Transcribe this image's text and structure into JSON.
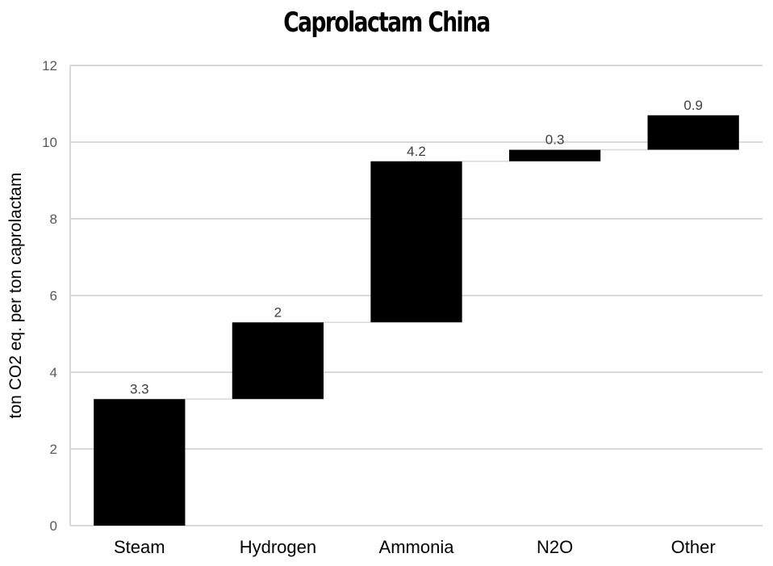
{
  "chart_data": {
    "type": "bar",
    "subtype": "waterfall",
    "title": "Caprolactam China",
    "xlabel": "",
    "ylabel": "ton CO2 eq. per ton caprolactam",
    "categories": [
      "Steam",
      "Hydrogen",
      "Ammonia",
      "N2O",
      "Other"
    ],
    "values": [
      3.3,
      2,
      4.2,
      0.3,
      0.9
    ],
    "data_labels": [
      "3.3",
      "2",
      "4.2",
      "0.3",
      "0.9"
    ],
    "ylim": [
      0,
      12
    ],
    "yticks": [
      0,
      2,
      4,
      6,
      8,
      10,
      12
    ],
    "ytick_labels": [
      "0",
      "2",
      "4",
      "6",
      "8",
      "10",
      "12"
    ],
    "grid": true,
    "legend": "none",
    "bar_color": "#000000",
    "grid_color": "#d9d9d9"
  }
}
